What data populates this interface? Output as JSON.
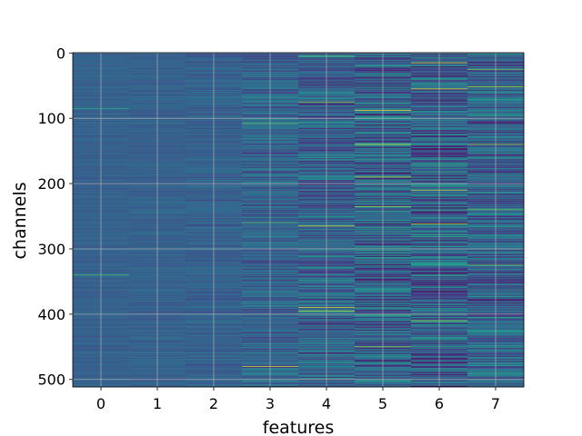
{
  "chart_data": {
    "type": "heatmap",
    "xlabel": "features",
    "ylabel": "channels",
    "x_categories": [
      0,
      1,
      2,
      3,
      4,
      5,
      6,
      7
    ],
    "xlim": [
      -0.5,
      7.5
    ],
    "ylim": [
      511.5,
      -0.5
    ],
    "y_ticks": [
      0,
      100,
      200,
      300,
      400,
      500
    ],
    "n_channels": 512,
    "n_features": 8,
    "colormap": "viridis",
    "grid": true,
    "grid_color": "#b0b0b0",
    "column_contrast": [
      0.04,
      0.05,
      0.07,
      0.14,
      0.2,
      0.26,
      0.26,
      0.22
    ],
    "highlights": [
      {
        "feature": 0,
        "channel": 85,
        "value": 0.62
      },
      {
        "feature": 0,
        "channel": 340,
        "value": 0.7
      },
      {
        "feature": 3,
        "channel": 108,
        "value": 0.75
      },
      {
        "feature": 3,
        "channel": 260,
        "value": 0.72
      },
      {
        "feature": 3,
        "channel": 480,
        "value": 0.95
      },
      {
        "feature": 4,
        "channel": 5,
        "value": 0.72
      },
      {
        "feature": 4,
        "channel": 75,
        "value": 0.85
      },
      {
        "feature": 4,
        "channel": 265,
        "value": 0.95
      },
      {
        "feature": 4,
        "channel": 390,
        "value": 0.97
      },
      {
        "feature": 4,
        "channel": 395,
        "value": 0.9
      },
      {
        "feature": 5,
        "channel": 88,
        "value": 0.98
      },
      {
        "feature": 5,
        "channel": 140,
        "value": 0.92
      },
      {
        "feature": 5,
        "channel": 190,
        "value": 0.9
      },
      {
        "feature": 5,
        "channel": 235,
        "value": 0.85
      },
      {
        "feature": 5,
        "channel": 262,
        "value": 0.02
      },
      {
        "feature": 5,
        "channel": 450,
        "value": 0.85
      },
      {
        "feature": 6,
        "channel": 15,
        "value": 0.95
      },
      {
        "feature": 6,
        "channel": 55,
        "value": 0.97
      },
      {
        "feature": 6,
        "channel": 210,
        "value": 0.9
      },
      {
        "feature": 6,
        "channel": 262,
        "value": 0.9
      },
      {
        "feature": 6,
        "channel": 410,
        "value": 0.85
      },
      {
        "feature": 7,
        "channel": 25,
        "value": 0.8
      },
      {
        "feature": 7,
        "channel": 52,
        "value": 0.88
      },
      {
        "feature": 7,
        "channel": 140,
        "value": 0.85
      },
      {
        "feature": 7,
        "channel": 240,
        "value": 0.8
      },
      {
        "feature": 7,
        "channel": 325,
        "value": 0.78
      }
    ]
  }
}
